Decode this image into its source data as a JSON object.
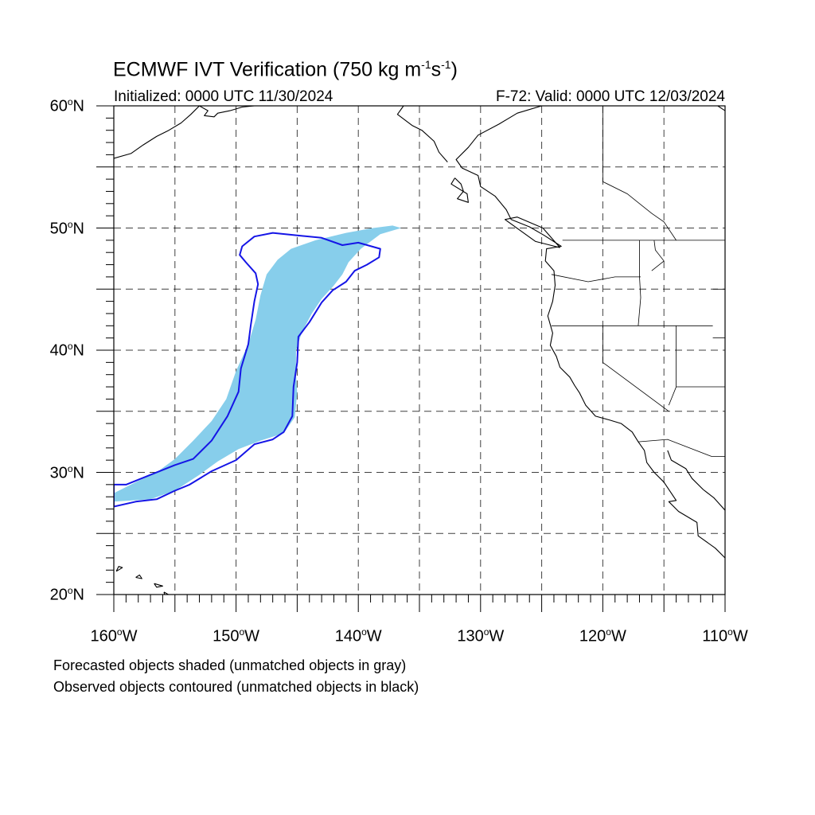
{
  "title": {
    "main": "ECMWF IVT Verification (750 kg m",
    "sup1": "-1",
    "mid": "s",
    "sup2": "-1",
    "end": ")"
  },
  "subtitle_left": "Initialized: 0000 UTC 11/30/2024",
  "subtitle_right": "F-72: Valid: 0000 UTC 12/03/2024",
  "latitude_labels": [
    {
      "deg": "60",
      "unit": "o",
      "hem": "N",
      "value": 60
    },
    {
      "deg": "50",
      "unit": "o",
      "hem": "N",
      "value": 50
    },
    {
      "deg": "40",
      "unit": "o",
      "hem": "N",
      "value": 40
    },
    {
      "deg": "30",
      "unit": "o",
      "hem": "N",
      "value": 30
    },
    {
      "deg": "20",
      "unit": "o",
      "hem": "N",
      "value": 20
    }
  ],
  "longitude_labels": [
    {
      "deg": "160",
      "unit": "o",
      "hem": "W",
      "value": -160
    },
    {
      "deg": "150",
      "unit": "o",
      "hem": "W",
      "value": -150
    },
    {
      "deg": "140",
      "unit": "o",
      "hem": "W",
      "value": -140
    },
    {
      "deg": "130",
      "unit": "o",
      "hem": "W",
      "value": -130
    },
    {
      "deg": "120",
      "unit": "o",
      "hem": "W",
      "value": -120
    },
    {
      "deg": "110",
      "unit": "o",
      "hem": "W",
      "value": -110
    }
  ],
  "footnotes": [
    "Forecasted objects shaded (unmatched objects in gray)",
    "Observed objects contoured (unmatched objects in black)"
  ],
  "map_extent": {
    "lon_min": -160,
    "lon_max": -110,
    "lat_min": 20,
    "lat_max": 60
  },
  "colors": {
    "forecast_fill": "#87ceeb",
    "observed_contour": "#1515e6",
    "coastline": "#000000",
    "grid": "#000000"
  },
  "forecast_object": [
    [
      -136.5,
      50.0
    ],
    [
      -138.2,
      49.5
    ],
    [
      -139.8,
      48.3
    ],
    [
      -140.8,
      47.2
    ],
    [
      -141.3,
      46.2
    ],
    [
      -142.0,
      45.3
    ],
    [
      -143.0,
      44.2
    ],
    [
      -143.8,
      43.0
    ],
    [
      -144.6,
      41.5
    ],
    [
      -145.1,
      40.0
    ],
    [
      -145.1,
      38.0
    ],
    [
      -145.0,
      36.5
    ],
    [
      -145.2,
      34.5
    ],
    [
      -146.1,
      33.2
    ],
    [
      -148.0,
      32.6
    ],
    [
      -149.8,
      31.9
    ],
    [
      -151.5,
      30.9
    ],
    [
      -153.0,
      29.8
    ],
    [
      -155.0,
      28.5
    ],
    [
      -157.0,
      27.8
    ],
    [
      -160.0,
      27.6
    ],
    [
      -160.0,
      28.3
    ],
    [
      -158.0,
      29.3
    ],
    [
      -156.5,
      30.0
    ],
    [
      -155.0,
      31.1
    ],
    [
      -153.5,
      32.6
    ],
    [
      -152.0,
      34.2
    ],
    [
      -150.8,
      36.0
    ],
    [
      -150.0,
      38.3
    ],
    [
      -149.0,
      40.5
    ],
    [
      -148.4,
      42.5
    ],
    [
      -148.0,
      44.5
    ],
    [
      -147.5,
      46.2
    ],
    [
      -146.6,
      47.4
    ],
    [
      -145.5,
      48.3
    ],
    [
      -143.5,
      49.0
    ],
    [
      -141.0,
      49.6
    ],
    [
      -138.8,
      50.0
    ],
    [
      -137.2,
      50.2
    ]
  ],
  "observed_object": [
    [
      -149.7,
      47.8
    ],
    [
      -149.5,
      48.5
    ],
    [
      -148.5,
      49.3
    ],
    [
      -147.0,
      49.6
    ],
    [
      -145.0,
      49.4
    ],
    [
      -143.0,
      49.2
    ],
    [
      -141.3,
      48.6
    ],
    [
      -140.0,
      48.8
    ],
    [
      -138.2,
      48.3
    ],
    [
      -138.3,
      47.6
    ],
    [
      -139.3,
      47.0
    ],
    [
      -140.3,
      46.5
    ],
    [
      -141.0,
      45.6
    ],
    [
      -142.1,
      44.9
    ],
    [
      -143.0,
      43.9
    ],
    [
      -144.0,
      42.3
    ],
    [
      -144.9,
      41.1
    ],
    [
      -145.0,
      39.0
    ],
    [
      -145.3,
      37.0
    ],
    [
      -145.4,
      34.6
    ],
    [
      -146.1,
      33.3
    ],
    [
      -147.0,
      32.7
    ],
    [
      -148.5,
      32.3
    ],
    [
      -150.0,
      31.0
    ],
    [
      -152.0,
      30.1
    ],
    [
      -153.8,
      29.0
    ],
    [
      -155.0,
      28.5
    ],
    [
      -156.5,
      27.8
    ],
    [
      -158.2,
      27.6
    ],
    [
      -160.0,
      27.2
    ],
    [
      -160.0,
      29.0
    ],
    [
      -159.0,
      29.0
    ],
    [
      -157.0,
      29.8
    ],
    [
      -155.0,
      30.6
    ],
    [
      -153.5,
      31.1
    ],
    [
      -152.0,
      32.6
    ],
    [
      -150.7,
      34.6
    ],
    [
      -149.8,
      36.6
    ],
    [
      -149.6,
      38.5
    ],
    [
      -149.0,
      40.5
    ],
    [
      -148.8,
      42.0
    ],
    [
      -148.5,
      44.0
    ],
    [
      -148.2,
      45.4
    ],
    [
      -148.4,
      46.3
    ],
    [
      -149.2,
      47.2
    ]
  ],
  "coastlines": [
    [
      [
        -125.0,
        60.0
      ],
      [
        -127.0,
        59.4
      ],
      [
        -128.5,
        58.5
      ],
      [
        -130.2,
        57.6
      ],
      [
        -131.0,
        56.6
      ],
      [
        -132.0,
        55.6
      ],
      [
        -131.5,
        54.9
      ],
      [
        -130.2,
        54.3
      ],
      [
        -130.0,
        53.4
      ],
      [
        -128.8,
        52.6
      ],
      [
        -127.9,
        51.5
      ],
      [
        -127.5,
        50.7
      ],
      [
        -126.0,
        50.1
      ],
      [
        -124.8,
        49.4
      ],
      [
        -123.4,
        48.5
      ],
      [
        -124.6,
        48.3
      ],
      [
        -124.7,
        47.3
      ],
      [
        -124.0,
        46.5
      ],
      [
        -123.9,
        45.3
      ],
      [
        -124.1,
        44.0
      ],
      [
        -124.5,
        42.8
      ],
      [
        -124.1,
        41.4
      ],
      [
        -124.3,
        40.4
      ],
      [
        -123.8,
        39.5
      ],
      [
        -123.5,
        38.6
      ],
      [
        -122.7,
        37.8
      ],
      [
        -122.3,
        37.1
      ],
      [
        -121.9,
        36.5
      ],
      [
        -121.4,
        35.5
      ],
      [
        -120.6,
        34.6
      ],
      [
        -119.5,
        34.3
      ],
      [
        -118.5,
        34.0
      ],
      [
        -117.6,
        33.3
      ],
      [
        -117.1,
        32.5
      ],
      [
        -116.6,
        31.8
      ],
      [
        -116.4,
        30.8
      ],
      [
        -115.8,
        30.0
      ],
      [
        -115.0,
        29.2
      ],
      [
        -114.4,
        28.3
      ],
      [
        -114.0,
        27.7
      ],
      [
        -114.6,
        27.6
      ],
      [
        -113.8,
        26.8
      ],
      [
        -112.3,
        25.9
      ],
      [
        -112.2,
        24.8
      ],
      [
        -110.8,
        23.8
      ],
      [
        -110.0,
        23.0
      ]
    ],
    [
      [
        -153.0,
        60.0
      ],
      [
        -152.3,
        59.6
      ],
      [
        -152.6,
        59.2
      ],
      [
        -151.8,
        59.1
      ],
      [
        -151.5,
        59.4
      ],
      [
        -150.5,
        59.6
      ],
      [
        -149.5,
        59.9
      ],
      [
        -148.5,
        60.0
      ]
    ],
    [
      [
        -160.0,
        55.7
      ],
      [
        -158.6,
        56.1
      ],
      [
        -157.6,
        56.8
      ],
      [
        -156.5,
        57.5
      ],
      [
        -155.5,
        58.0
      ],
      [
        -154.5,
        58.6
      ],
      [
        -153.7,
        59.3
      ],
      [
        -153.0,
        60.0
      ]
    ],
    [
      [
        -136.3,
        60.0
      ],
      [
        -136.8,
        59.3
      ],
      [
        -135.6,
        58.4
      ],
      [
        -134.8,
        58.0
      ],
      [
        -133.8,
        57.1
      ],
      [
        -133.4,
        56.2
      ],
      [
        -132.7,
        55.4
      ]
    ],
    [
      [
        -132.1,
        54.1
      ],
      [
        -131.6,
        53.6
      ],
      [
        -131.4,
        53.0
      ],
      [
        -131.9,
        52.4
      ],
      [
        -131.0,
        52.1
      ],
      [
        -131.1,
        52.8
      ],
      [
        -132.4,
        53.6
      ],
      [
        -132.1,
        54.1
      ]
    ],
    [
      [
        -114.7,
        31.8
      ],
      [
        -114.4,
        31.0
      ],
      [
        -113.2,
        30.3
      ],
      [
        -112.7,
        29.5
      ],
      [
        -111.8,
        28.6
      ],
      [
        -110.9,
        27.9
      ],
      [
        -110.0,
        26.9
      ]
    ],
    [
      [
        -110.6,
        60.0
      ],
      [
        -110.0,
        59.6
      ]
    ],
    [
      [
        -159.8,
        21.9
      ],
      [
        -159.3,
        22.2
      ],
      [
        -159.6,
        22.3
      ],
      [
        -159.8,
        21.9
      ]
    ],
    [
      [
        -158.2,
        21.4
      ],
      [
        -157.7,
        21.3
      ],
      [
        -157.9,
        21.6
      ],
      [
        -158.2,
        21.4
      ]
    ],
    [
      [
        -156.7,
        20.9
      ],
      [
        -156.0,
        20.7
      ],
      [
        -156.5,
        20.6
      ],
      [
        -156.7,
        20.9
      ]
    ],
    [
      [
        -155.9,
        20.2
      ],
      [
        -155.0,
        19.7
      ],
      [
        -155.6,
        19.0
      ],
      [
        -155.9,
        20.2
      ]
    ],
    [
      [
        -123.5,
        48.4
      ],
      [
        -125.5,
        48.9
      ],
      [
        -128.0,
        50.7
      ],
      [
        -127.0,
        50.9
      ],
      [
        -124.9,
        50.0
      ],
      [
        -123.5,
        48.4
      ]
    ]
  ],
  "borders": [
    [
      [
        -123.3,
        49.0
      ],
      [
        -110.0,
        49.0
      ]
    ],
    [
      [
        -124.2,
        46.2
      ],
      [
        -121.2,
        45.6
      ],
      [
        -119.0,
        46.0
      ],
      [
        -116.9,
        46.0
      ]
    ],
    [
      [
        -117.0,
        49.0
      ],
      [
        -117.0,
        46.0
      ],
      [
        -116.9,
        44.3
      ],
      [
        -117.1,
        42.0
      ]
    ],
    [
      [
        -124.2,
        42.0
      ],
      [
        -111.0,
        42.0
      ]
    ],
    [
      [
        -120.0,
        42.0
      ],
      [
        -120.0,
        39.0
      ],
      [
        -114.6,
        35.0
      ]
    ],
    [
      [
        -114.0,
        42.0
      ],
      [
        -114.0,
        37.0
      ],
      [
        -114.6,
        35.5
      ]
    ],
    [
      [
        -111.0,
        45.0
      ],
      [
        -110.0,
        45.0
      ]
    ],
    [
      [
        -110.0,
        41.0
      ],
      [
        -111.0,
        41.0
      ]
    ],
    [
      [
        -114.0,
        37.0
      ],
      [
        -110.0,
        37.0
      ]
    ],
    [
      [
        -117.1,
        32.5
      ],
      [
        -114.7,
        32.7
      ],
      [
        -111.1,
        31.3
      ],
      [
        -110.0,
        31.3
      ]
    ],
    [
      [
        -115.8,
        49.0
      ],
      [
        -115.7,
        48.2
      ],
      [
        -115.0,
        47.3
      ],
      [
        -116.0,
        46.5
      ]
    ],
    [
      [
        -120.0,
        60.0
      ],
      [
        -120.0,
        53.8
      ],
      [
        -118.0,
        52.8
      ],
      [
        -116.0,
        51.2
      ],
      [
        -115.0,
        50.5
      ],
      [
        -114.0,
        49.0
      ]
    ]
  ]
}
